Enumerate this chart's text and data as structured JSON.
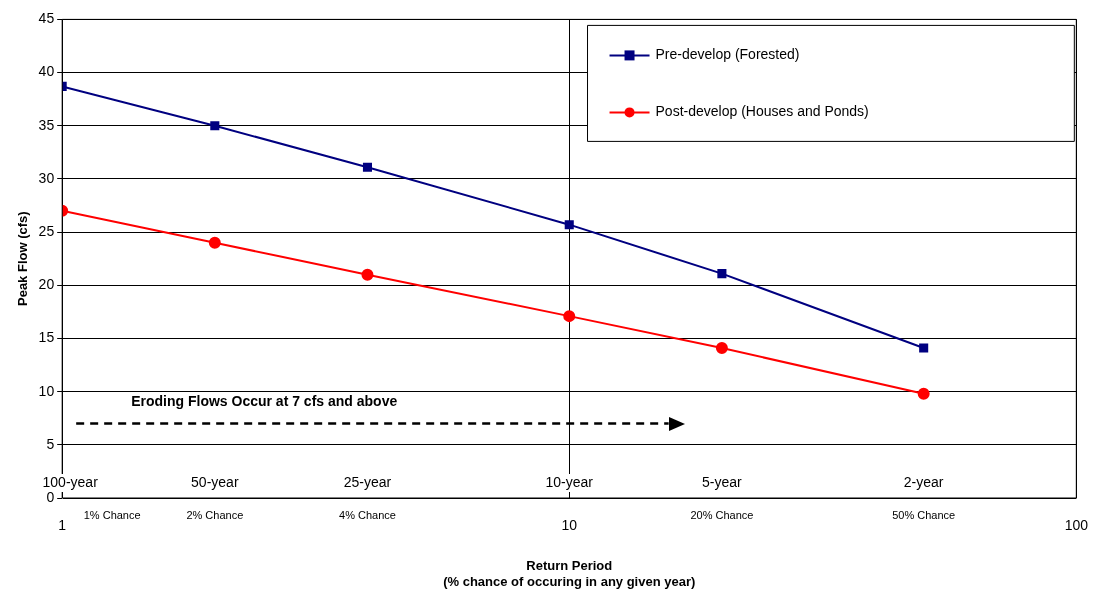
{
  "chart_data": {
    "type": "line",
    "xlabel": "Return Period\n(% chance of occuring in any given year)",
    "ylabel": "Peak Flow (cfs)",
    "log": "x",
    "x": [
      1,
      2,
      4,
      10,
      20,
      50
    ],
    "xlim": [
      1,
      100
    ],
    "xticks": [
      1,
      10,
      100
    ],
    "ylim": [
      0,
      45
    ],
    "yticks": [
      0,
      5,
      10,
      15,
      20,
      25,
      30,
      35,
      40,
      45
    ],
    "grid": true,
    "legend": "top right",
    "series": [
      {
        "name": "Pre-develop (Forested)",
        "color": "#000080",
        "marker": "square",
        "values": [
          38.7,
          35.0,
          31.1,
          25.7,
          21.1,
          14.1
        ]
      },
      {
        "name": "Post-develop (Houses and Ponds)",
        "color": "#ff0000",
        "marker": "circle",
        "values": [
          27.0,
          24.0,
          21.0,
          17.1,
          14.1,
          9.8
        ]
      }
    ],
    "ref_lines": [
      {
        "axis": "y",
        "value": 7,
        "label": "Eroding Flows Occur at 7 cfs and above",
        "line_style": "dashed",
        "color": "#000000"
      }
    ],
    "annotations": [
      "100-year",
      "50-year",
      "25-year",
      "10-year",
      "5-year",
      "2-year",
      "1% Chance",
      "2% Chance",
      "4% Chance",
      "20% Chance",
      "50% Chance"
    ]
  }
}
